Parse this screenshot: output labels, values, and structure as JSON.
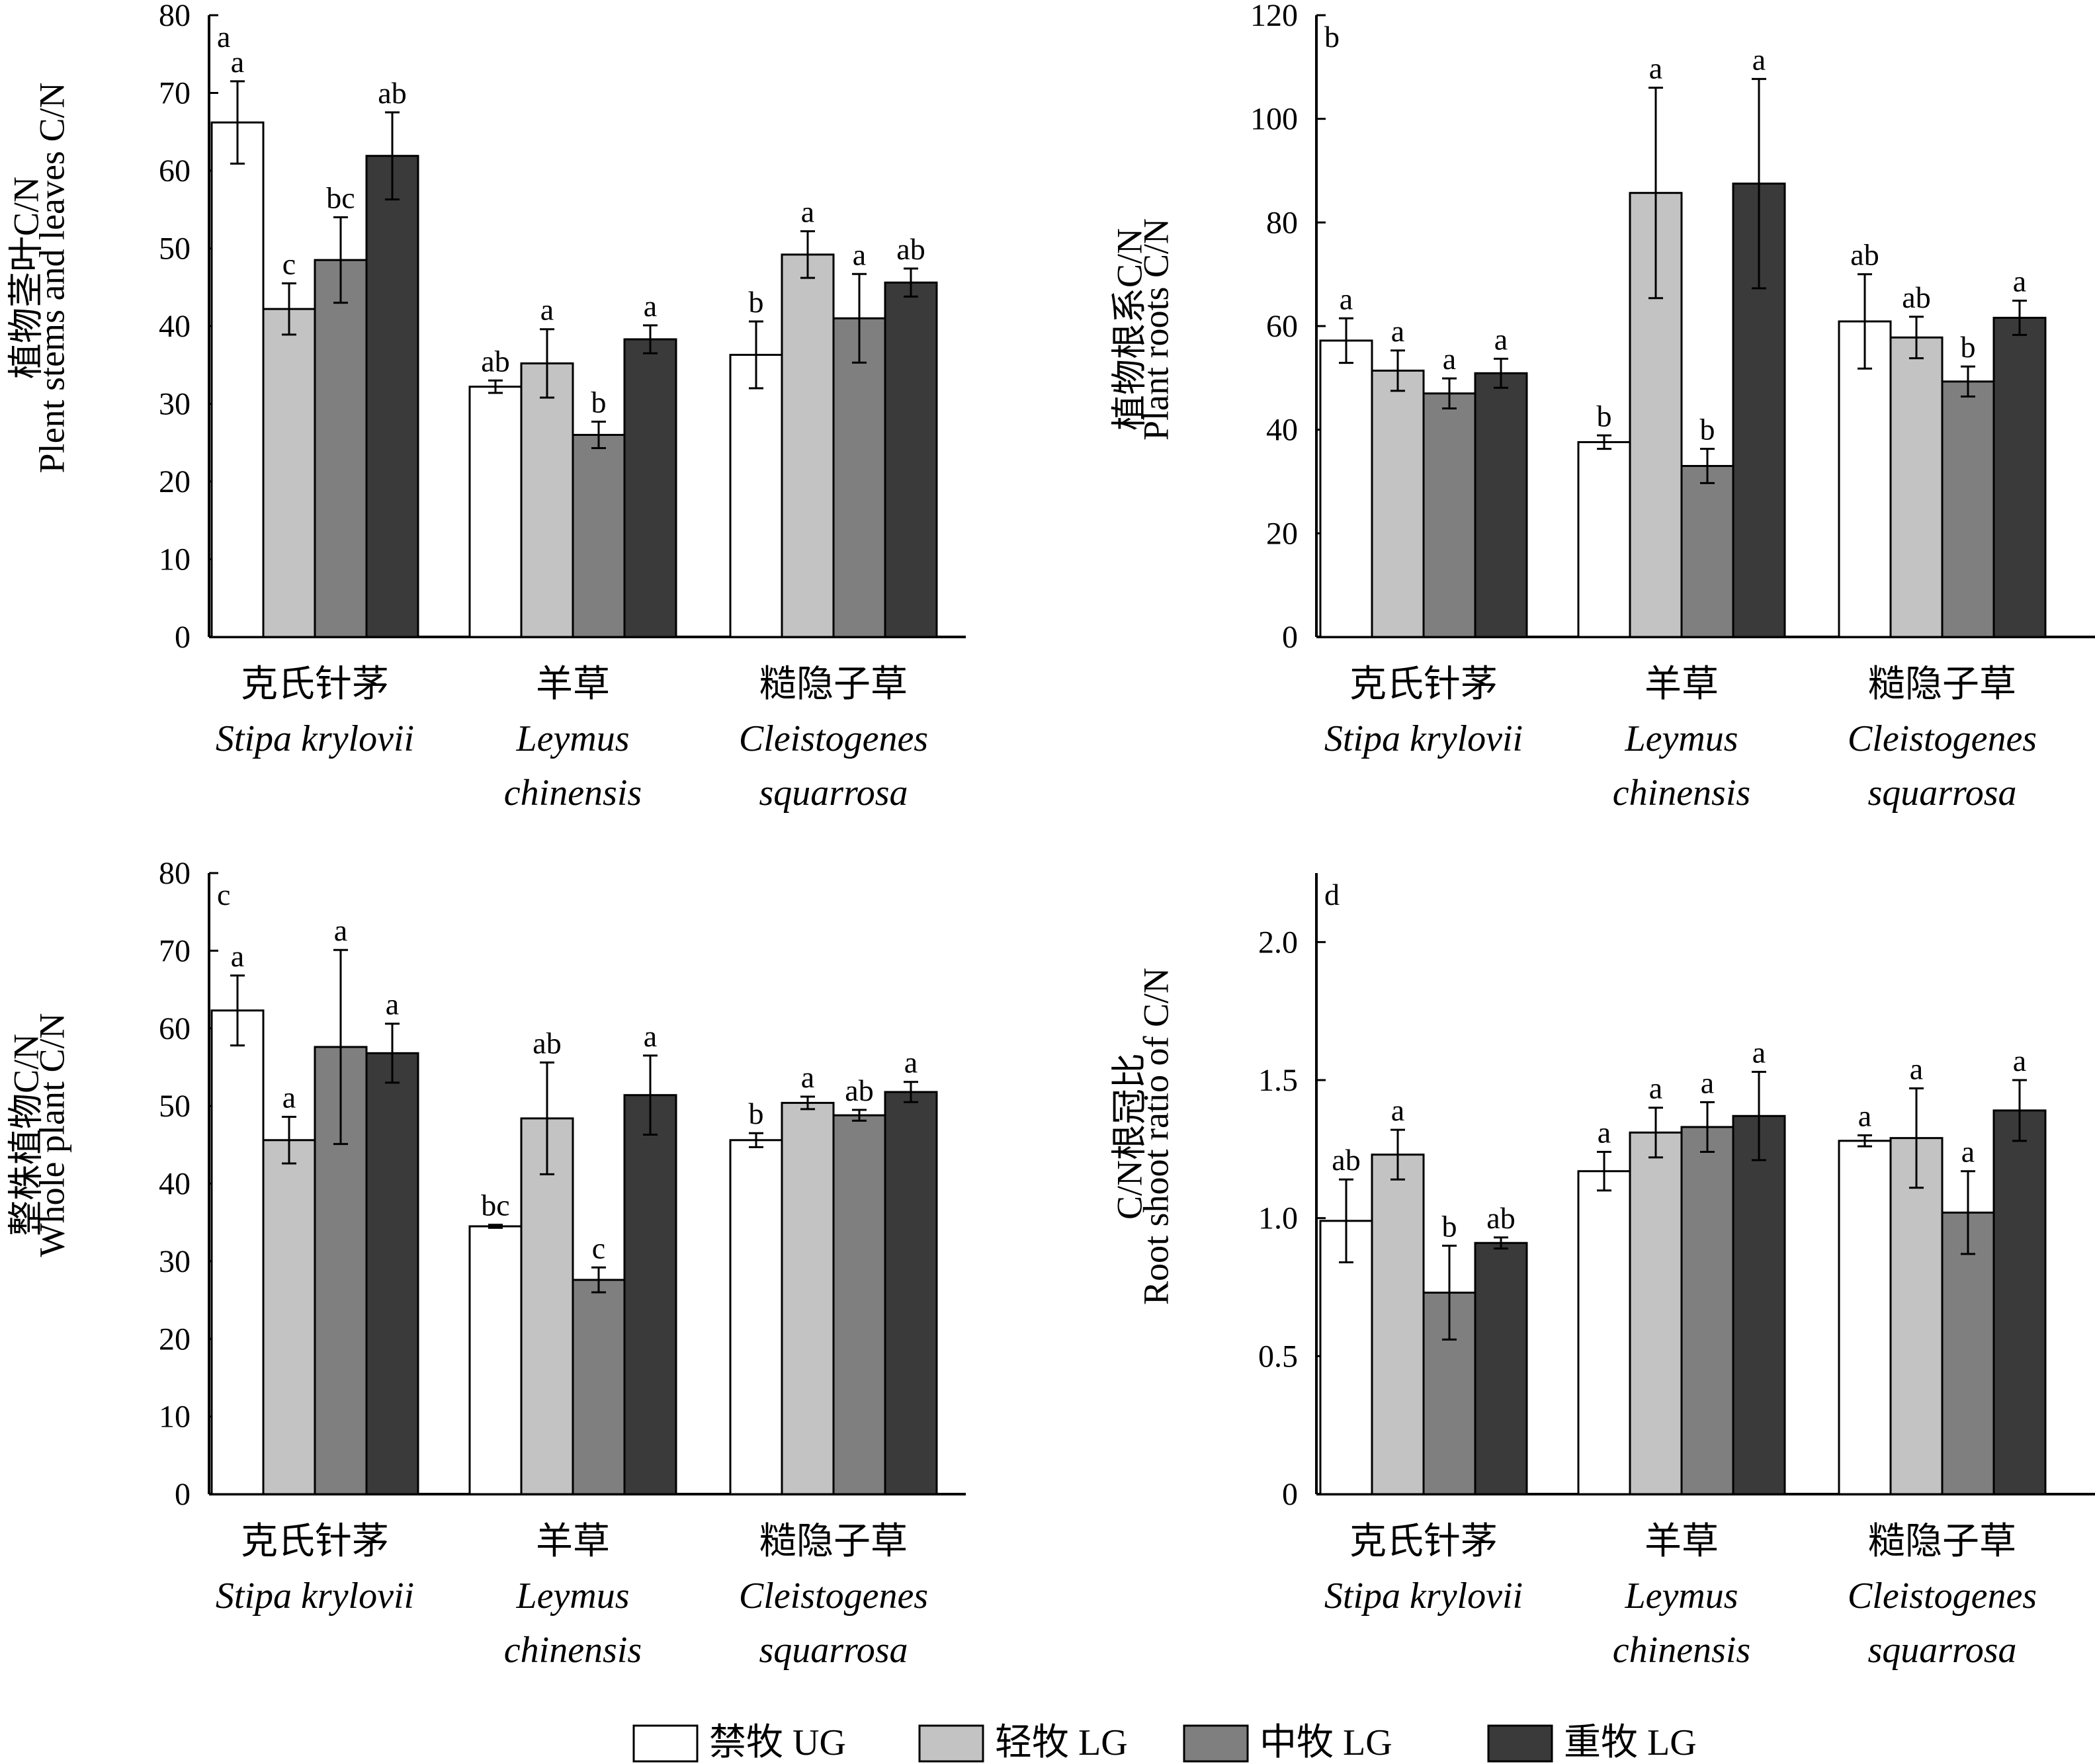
{
  "chart_data": [
    {
      "type": "bar",
      "panel_label": "a",
      "ylabel_cn": "植物茎叶C/N",
      "ylabel_en": "Plent stems and leaves C/N",
      "ylim": [
        0,
        80
      ],
      "yticks": [
        0,
        10,
        20,
        30,
        40,
        50,
        60,
        70,
        80
      ],
      "ytick_labels": [
        "0",
        "10",
        "20",
        "30",
        "40",
        "50",
        "60",
        "70",
        "80"
      ],
      "categories": [
        "克氏针茅",
        "羊草",
        "糙隐子草"
      ],
      "categories_latin": [
        [
          "Stipa krylovii"
        ],
        [
          "Leymus",
          "chinensis"
        ],
        [
          "Cleistogenes",
          "squarrosa"
        ]
      ],
      "series": [
        {
          "name": "禁牧 UG",
          "values": [
            66.2,
            32.2,
            36.3
          ],
          "errors": [
            5.3,
            0.8,
            4.3
          ],
          "letters": [
            "a",
            "ab",
            "b"
          ]
        },
        {
          "name": "轻牧 LG",
          "values": [
            42.2,
            35.2,
            49.2
          ],
          "errors": [
            3.3,
            4.4,
            3.0
          ],
          "letters": [
            "c",
            "a",
            "a"
          ]
        },
        {
          "name": "中牧 LG",
          "values": [
            48.5,
            26.0,
            41.0
          ],
          "errors": [
            5.5,
            1.7,
            5.7
          ],
          "letters": [
            "bc",
            "b",
            "a"
          ]
        },
        {
          "name": "重牧 LG",
          "values": [
            61.9,
            38.3,
            45.6
          ],
          "errors": [
            5.6,
            1.8,
            1.8
          ],
          "letters": [
            "ab",
            "a",
            "ab"
          ]
        }
      ]
    },
    {
      "type": "bar",
      "panel_label": "b",
      "ylabel_cn": "植物根系C/N",
      "ylabel_en": "Plant roots C/N",
      "ylim": [
        0,
        120
      ],
      "yticks": [
        0,
        20,
        40,
        60,
        80,
        100,
        120
      ],
      "ytick_labels": [
        "0",
        "20",
        "40",
        "60",
        "80",
        "100",
        "120"
      ],
      "categories": [
        "克氏针茅",
        "羊草",
        "糙隐子草"
      ],
      "categories_latin": [
        [
          "Stipa krylovii"
        ],
        [
          "Leymus",
          "chinensis"
        ],
        [
          "Cleistogenes",
          "squarrosa"
        ]
      ],
      "series": [
        {
          "name": "禁牧 UG",
          "values": [
            57.2,
            37.6,
            60.9
          ],
          "errors": [
            4.3,
            1.3,
            9.1
          ],
          "letters": [
            "a",
            "b",
            "ab"
          ]
        },
        {
          "name": "轻牧 LG",
          "values": [
            51.4,
            85.7,
            57.8
          ],
          "errors": [
            3.9,
            20.3,
            4.0
          ],
          "letters": [
            "a",
            "a",
            "ab"
          ]
        },
        {
          "name": "中牧 LG",
          "values": [
            47.0,
            33.0,
            49.3
          ],
          "errors": [
            2.9,
            3.3,
            2.9
          ],
          "letters": [
            "a",
            "b",
            "b"
          ]
        },
        {
          "name": "重牧 LG",
          "values": [
            50.9,
            87.5,
            61.6
          ],
          "errors": [
            2.8,
            20.2,
            3.3
          ],
          "letters": [
            "a",
            "a",
            "a"
          ]
        }
      ]
    },
    {
      "type": "bar",
      "panel_label": "c",
      "ylabel_cn": "整株植物C/N",
      "ylabel_en": "Whole plant C/N",
      "ylim": [
        0,
        80
      ],
      "yticks": [
        0,
        10,
        20,
        30,
        40,
        50,
        60,
        70,
        80
      ],
      "ytick_labels": [
        "0",
        "10",
        "20",
        "30",
        "40",
        "50",
        "60",
        "70",
        "80"
      ],
      "categories": [
        "克氏针茅",
        "羊草",
        "糙隐子草"
      ],
      "categories_latin": [
        [
          "Stipa krylovii"
        ],
        [
          "Leymus",
          "chinensis"
        ],
        [
          "Cleistogenes",
          "squarrosa"
        ]
      ],
      "series": [
        {
          "name": "禁牧 UG",
          "values": [
            62.3,
            34.5,
            45.6
          ],
          "errors": [
            4.5,
            0.2,
            0.9
          ],
          "letters": [
            "a",
            "bc",
            "b"
          ]
        },
        {
          "name": "轻牧 LG",
          "values": [
            45.6,
            48.4,
            50.4
          ],
          "errors": [
            3.0,
            7.2,
            0.8
          ],
          "letters": [
            "a",
            "ab",
            "a"
          ]
        },
        {
          "name": "中牧 LG",
          "values": [
            57.6,
            27.6,
            48.8
          ],
          "errors": [
            12.5,
            1.6,
            0.7
          ],
          "letters": [
            "a",
            "c",
            "ab"
          ]
        },
        {
          "name": "重牧 LG",
          "values": [
            56.8,
            51.4,
            51.8
          ],
          "errors": [
            3.8,
            5.1,
            1.3
          ],
          "letters": [
            "a",
            "a",
            "a"
          ]
        }
      ]
    },
    {
      "type": "bar",
      "panel_label": "d",
      "ylabel_cn": "C/N根冠比",
      "ylabel_en": "Root shoot ratio of C/N",
      "ylim": [
        0,
        2.25
      ],
      "yticks": [
        0,
        0.5,
        1.0,
        1.5,
        2.0
      ],
      "ytick_labels": [
        "0",
        "0.5",
        "1.0",
        "1.5",
        "2.0"
      ],
      "categories": [
        "克氏针茅",
        "羊草",
        "糙隐子草"
      ],
      "categories_latin": [
        [
          "Stipa krylovii"
        ],
        [
          "Leymus",
          "chinensis"
        ],
        [
          "Cleistogenes",
          "squarrosa"
        ]
      ],
      "series": [
        {
          "name": "禁牧 UG",
          "values": [
            0.99,
            1.17,
            1.28
          ],
          "errors": [
            0.15,
            0.07,
            0.02
          ],
          "letters": [
            "ab",
            "a",
            "a"
          ]
        },
        {
          "name": "轻牧 LG",
          "values": [
            1.23,
            1.31,
            1.29
          ],
          "errors": [
            0.09,
            0.09,
            0.18
          ],
          "letters": [
            "a",
            "a",
            "a"
          ]
        },
        {
          "name": "中牧 LG",
          "values": [
            0.73,
            1.33,
            1.02
          ],
          "errors": [
            0.17,
            0.09,
            0.15
          ],
          "letters": [
            "b",
            "a",
            "a"
          ]
        },
        {
          "name": "重牧 LG",
          "values": [
            0.91,
            1.37,
            1.39
          ],
          "errors": [
            0.02,
            0.16,
            0.11
          ],
          "letters": [
            "ab",
            "a",
            "a"
          ]
        }
      ]
    }
  ],
  "legend": {
    "items": [
      "禁牧 UG",
      "轻牧 LG",
      "中牧 LG",
      "重牧 LG"
    ],
    "colors": [
      "#ffffff",
      "#c3c3c3",
      "#7f7f7f",
      "#3a3a3a"
    ]
  }
}
